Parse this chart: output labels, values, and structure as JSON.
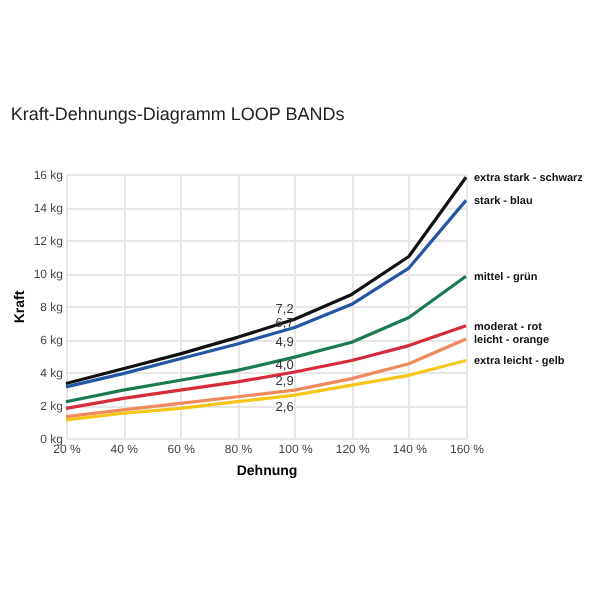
{
  "chart_data": {
    "type": "line",
    "title": "Kraft-Dehnungs-Diagramm LOOP BANDs",
    "xlabel": "Dehnung",
    "ylabel": "Kraft",
    "x": [
      20,
      40,
      60,
      80,
      100,
      120,
      140,
      160
    ],
    "series": [
      {
        "name": "extra stark - schwarz",
        "color": "#111111",
        "values": [
          3.3,
          4.2,
          5.1,
          6.1,
          7.2,
          8.7,
          11.0,
          15.8
        ],
        "value_labels": [
          null,
          null,
          null,
          null,
          "7,2",
          null,
          null,
          null
        ]
      },
      {
        "name": "stark - blau",
        "color": "#2456a4",
        "values": [
          3.1,
          3.9,
          4.8,
          5.7,
          6.7,
          8.1,
          10.3,
          14.4
        ],
        "value_labels": [
          null,
          null,
          null,
          null,
          "6,7",
          null,
          null,
          null
        ]
      },
      {
        "name": "mittel - grün",
        "color": "#1a7a50",
        "values": [
          2.2,
          2.9,
          3.5,
          4.1,
          4.9,
          5.8,
          7.3,
          9.8
        ],
        "value_labels": [
          null,
          null,
          null,
          null,
          "4,9",
          null,
          null,
          null
        ]
      },
      {
        "name": "moderat - rot",
        "color": "#d62b3a",
        "values": [
          1.8,
          2.4,
          2.9,
          3.4,
          4.0,
          4.7,
          5.6,
          6.8
        ],
        "value_labels": [
          null,
          null,
          null,
          null,
          "4,0",
          null,
          null,
          null
        ]
      },
      {
        "name": "leicht - orange",
        "color": "#f08a5d",
        "values": [
          1.3,
          1.7,
          2.1,
          2.5,
          2.9,
          3.6,
          4.5,
          6.0
        ],
        "value_labels": [
          null,
          null,
          null,
          null,
          "2,9",
          null,
          null,
          null
        ]
      },
      {
        "name": "extra leicht - gelb",
        "color": "#f5c518",
        "values": [
          1.1,
          1.5,
          1.8,
          2.2,
          2.6,
          3.2,
          3.8,
          4.7
        ],
        "value_labels": [
          null,
          null,
          null,
          null,
          "2,6",
          null,
          null,
          null
        ]
      }
    ],
    "xlim": [
      20,
      160
    ],
    "xticks": [
      {
        "value": 20,
        "label": "20 %"
      },
      {
        "value": 40,
        "label": "40 %"
      },
      {
        "value": 60,
        "label": "60 %"
      },
      {
        "value": 80,
        "label": "80 %"
      },
      {
        "value": 100,
        "label": "100 %"
      },
      {
        "value": 120,
        "label": "120 %"
      },
      {
        "value": 140,
        "label": "140 %"
      },
      {
        "value": 160,
        "label": "160 %"
      }
    ],
    "ylim": [
      0,
      16
    ],
    "yticks": [
      {
        "value": 0,
        "label": "0 kg"
      },
      {
        "value": 2,
        "label": "2 kg"
      },
      {
        "value": 4,
        "label": "4 kg"
      },
      {
        "value": 6,
        "label": "6 kg"
      },
      {
        "value": 8,
        "label": "8 kg"
      },
      {
        "value": 10,
        "label": "10 kg"
      },
      {
        "value": 12,
        "label": "12 kg"
      },
      {
        "value": 14,
        "label": "14 kg"
      },
      {
        "value": 16,
        "label": "16 kg"
      }
    ],
    "grid": true,
    "marker": "none",
    "line_style": "solid"
  }
}
